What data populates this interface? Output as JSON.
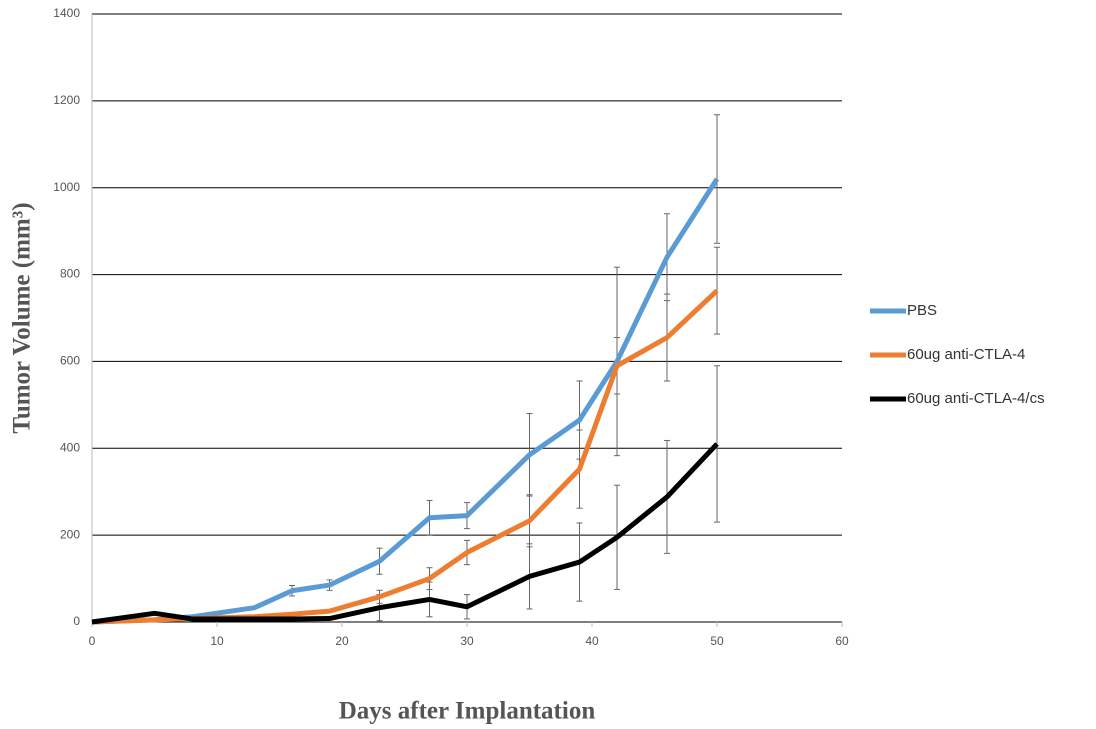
{
  "chart_data": {
    "type": "line",
    "x_label": "Days after Implantation",
    "y_label": "Tumor Volume (mm³)",
    "xlim": [
      0,
      60
    ],
    "xticks": [
      0,
      10,
      20,
      30,
      40,
      50,
      60
    ],
    "ylim": [
      0,
      1400
    ],
    "yticks": [
      0,
      200,
      400,
      600,
      800,
      1000,
      1200,
      1400
    ],
    "grid": true,
    "legend": "right",
    "x": [
      0,
      5,
      8,
      13,
      16,
      19,
      23,
      27,
      30,
      35,
      39,
      42,
      46,
      50
    ],
    "series": [
      {
        "name": "PBS",
        "color": "#5b9bd5",
        "values": [
          0,
          5,
          12,
          33,
          72,
          85,
          140,
          240,
          245,
          385,
          465,
          600,
          840,
          1020
        ],
        "errors": [
          null,
          null,
          null,
          null,
          12,
          12,
          30,
          40,
          30,
          95,
          90,
          217,
          100,
          148
        ]
      },
      {
        "name": "60ug anti-CTLA-4",
        "color": "#ed7d31",
        "values": [
          0,
          5,
          8,
          12,
          18,
          25,
          58,
          100,
          160,
          233,
          352,
          590,
          655,
          763
        ],
        "errors": [
          null,
          null,
          null,
          null,
          null,
          null,
          15,
          25,
          28,
          60,
          90,
          65,
          100,
          100
        ]
      },
      {
        "name": "60ug anti-CTLA-4/cs",
        "color": "#000000",
        "values": [
          0,
          20,
          7,
          7,
          7,
          8,
          33,
          52,
          35,
          105,
          138,
          195,
          288,
          410
        ],
        "errors": [
          null,
          null,
          null,
          null,
          null,
          null,
          30,
          40,
          28,
          75,
          90,
          120,
          130,
          180
        ]
      }
    ]
  }
}
